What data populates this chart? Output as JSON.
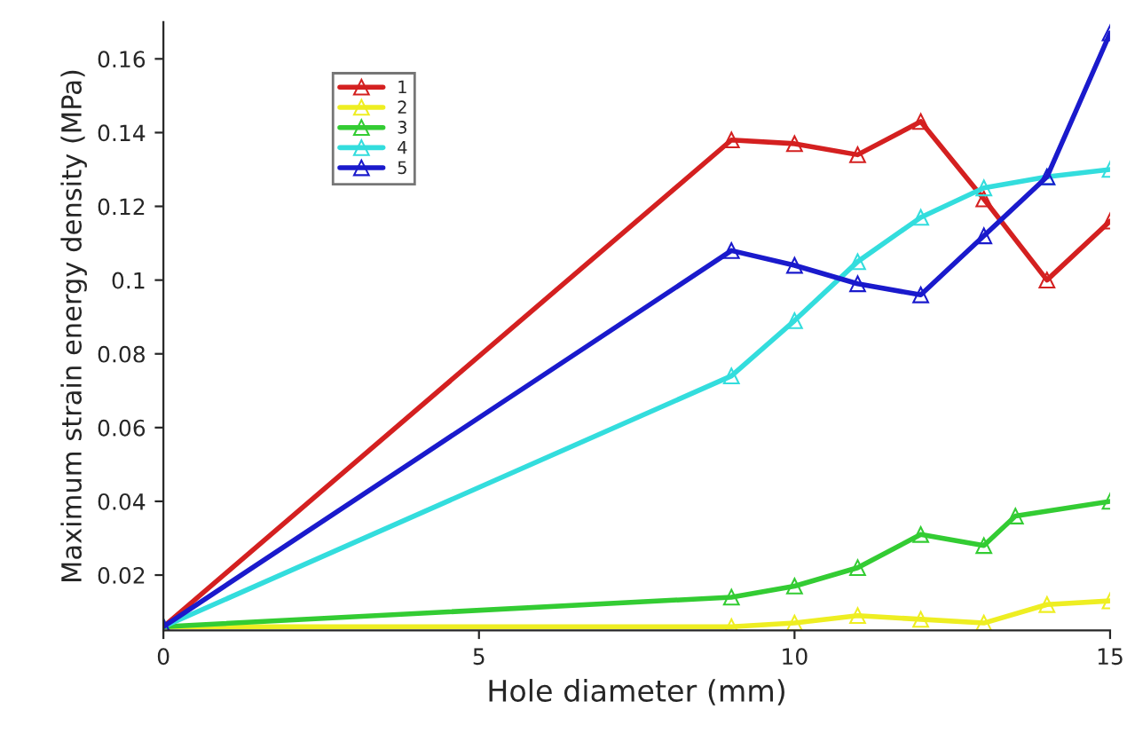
{
  "chart_data": {
    "type": "line",
    "xlabel": "Hole diameter (mm)",
    "ylabel": "Maximum strain energy density (MPa)",
    "xlim": [
      0,
      15
    ],
    "ylim": [
      0.005,
      0.17
    ],
    "xticks": [
      0,
      5,
      10,
      15
    ],
    "yticks": [
      0.02,
      0.04,
      0.06,
      0.08,
      {
        "value": 0.1,
        "label": "0.1"
      },
      0.12,
      0.14,
      0.16
    ],
    "marker": "triangle",
    "line_style": "solid",
    "grid": false,
    "legend": "top left",
    "series": [
      {
        "name": "1",
        "color": "#d42020",
        "x": [
          0,
          9,
          10,
          11,
          12,
          13,
          14,
          15
        ],
        "values": [
          0.006,
          0.138,
          0.137,
          0.134,
          0.143,
          0.122,
          0.1,
          0.116
        ]
      },
      {
        "name": "2",
        "color": "#eeee22",
        "x": [
          0,
          9,
          10,
          11,
          12,
          13,
          14,
          15
        ],
        "values": [
          0.006,
          0.006,
          0.007,
          0.009,
          0.008,
          0.007,
          0.012,
          0.013
        ]
      },
      {
        "name": "3",
        "color": "#33cc33",
        "x": [
          0,
          9,
          10,
          11,
          12,
          13,
          13.5,
          15
        ],
        "values": [
          0.006,
          0.014,
          0.017,
          0.022,
          0.031,
          0.028,
          0.036,
          0.04
        ]
      },
      {
        "name": "4",
        "color": "#33dddd",
        "x": [
          0,
          9,
          10,
          11,
          12,
          13,
          14,
          15
        ],
        "values": [
          0.006,
          0.074,
          0.089,
          0.105,
          0.117,
          0.125,
          0.128,
          0.13
        ]
      },
      {
        "name": "5",
        "color": "#1a1acc",
        "x": [
          0,
          9,
          10,
          11,
          12,
          13,
          14,
          15
        ],
        "values": [
          0.006,
          0.108,
          0.104,
          0.099,
          0.096,
          0.112,
          0.128,
          0.167
        ]
      }
    ]
  }
}
